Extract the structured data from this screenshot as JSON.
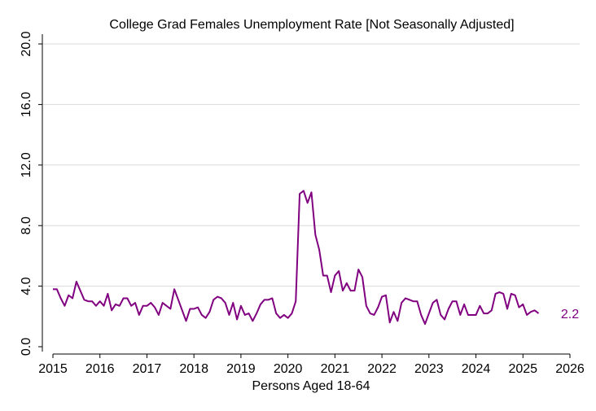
{
  "chart_data": {
    "type": "line",
    "title": "College Grad Females Unemployment Rate [Not Seasonally Adjusted]",
    "xlabel": "Persons Aged 18-64",
    "ylabel": "",
    "xlim": [
      2015,
      2026
    ],
    "ylim": [
      0,
      20
    ],
    "x_ticks": [
      2015,
      2016,
      2017,
      2018,
      2019,
      2020,
      2021,
      2022,
      2023,
      2024,
      2025,
      2026
    ],
    "x_tick_labels": [
      "2015",
      "2016",
      "2017",
      "2018",
      "2019",
      "2020",
      "2021",
      "2022",
      "2023",
      "2024",
      "2025",
      "2026"
    ],
    "y_ticks": [
      0,
      4,
      8,
      12,
      16,
      20
    ],
    "y_tick_labels": [
      "0.0",
      "4.0",
      "8.0",
      "12.0",
      "16.0",
      "20.0"
    ],
    "grid": true,
    "legend": "none",
    "series": [
      {
        "color": "#800080",
        "end_label": "2.2",
        "start": "2015-01",
        "frequency": "monthly",
        "values": [
          3.8,
          3.8,
          3.2,
          2.7,
          3.4,
          3.2,
          4.3,
          3.7,
          3.1,
          3.0,
          3.0,
          2.7,
          3.0,
          2.7,
          3.5,
          2.4,
          2.8,
          2.7,
          3.2,
          3.2,
          2.7,
          2.9,
          2.1,
          2.7,
          2.7,
          2.9,
          2.6,
          2.1,
          2.9,
          2.7,
          2.5,
          3.8,
          3.1,
          2.4,
          1.7,
          2.5,
          2.5,
          2.6,
          2.1,
          1.9,
          2.3,
          3.1,
          3.3,
          3.2,
          2.9,
          2.1,
          2.9,
          1.8,
          2.7,
          2.1,
          2.2,
          1.7,
          2.2,
          2.8,
          3.1,
          3.1,
          3.2,
          2.2,
          1.9,
          2.1,
          1.9,
          2.2,
          3.0,
          10.1,
          10.3,
          9.5,
          10.2,
          7.4,
          6.4,
          4.7,
          4.7,
          3.6,
          4.7,
          5.0,
          3.7,
          4.2,
          3.7,
          3.7,
          5.1,
          4.6,
          2.7,
          2.2,
          2.1,
          2.6,
          3.3,
          3.4,
          1.6,
          2.3,
          1.7,
          2.9,
          3.2,
          3.1,
          3.0,
          3.0,
          2.1,
          1.5,
          2.2,
          2.9,
          3.1,
          2.1,
          1.8,
          2.5,
          3.0,
          3.0,
          2.1,
          2.8,
          2.1,
          2.1,
          2.1,
          2.7,
          2.2,
          2.2,
          2.4,
          3.5,
          3.6,
          3.5,
          2.5,
          3.5,
          3.4,
          2.6,
          2.8,
          2.1,
          2.3,
          2.4,
          2.2
        ]
      }
    ]
  }
}
